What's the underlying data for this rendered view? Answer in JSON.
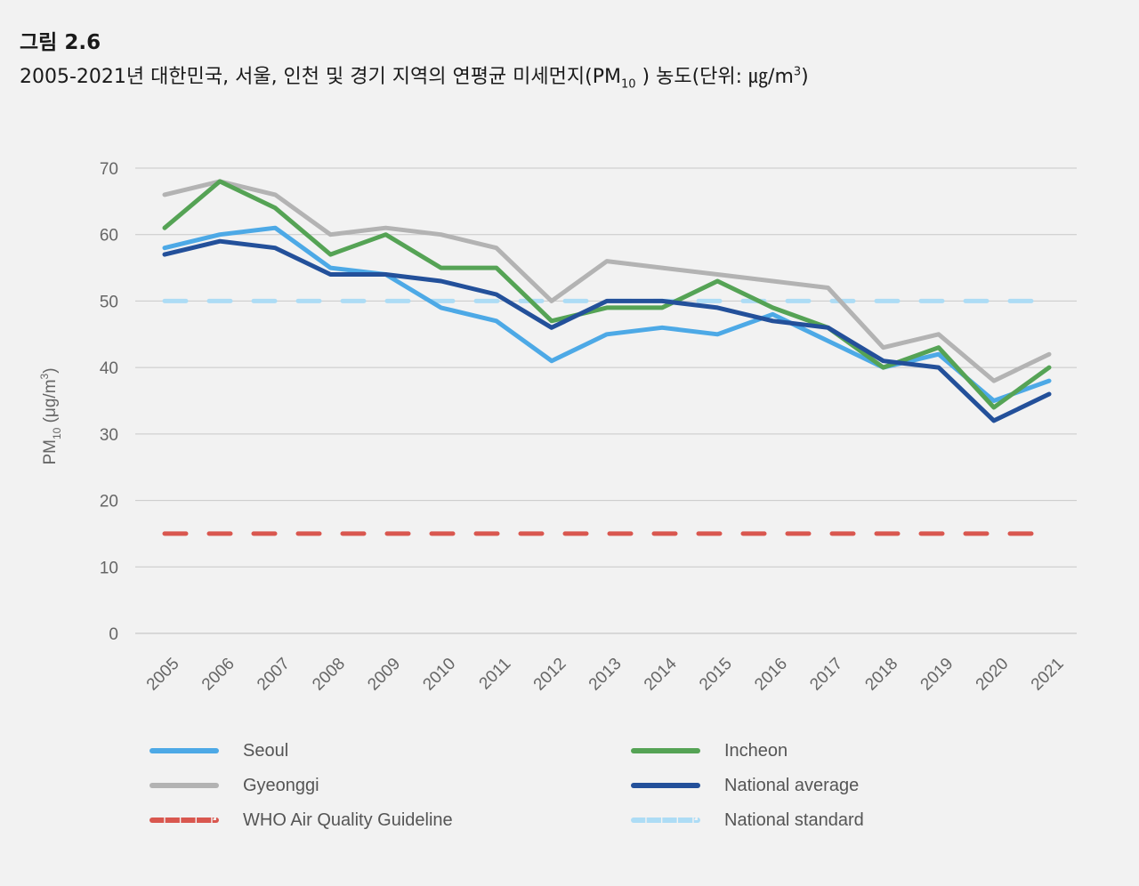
{
  "figure": {
    "label": "그림 2.6",
    "title_main": "2005-2021년 대한민국, 서울, 인천 및 경기 지역의 연평균 미세먼지(PM",
    "title_sub": "10",
    "title_tail": " ) 농도(단위: ㎍/m",
    "title_sup": "3",
    "title_end": ")"
  },
  "chart_data": {
    "type": "line",
    "categories": [
      "2005",
      "2006",
      "2007",
      "2008",
      "2009",
      "2010",
      "2011",
      "2012",
      "2013",
      "2014",
      "2015",
      "2016",
      "2017",
      "2018",
      "2019",
      "2020",
      "2021"
    ],
    "ylabel": "PM10 (μg/m3)",
    "ylim": [
      0,
      70
    ],
    "yticks": [
      0,
      10,
      20,
      30,
      40,
      50,
      60,
      70
    ],
    "grid": true,
    "legend_position": "bottom",
    "series": [
      {
        "name": "Seoul",
        "color": "#4da9e6",
        "dash": false,
        "values": [
          58,
          60,
          61,
          55,
          54,
          49,
          47,
          41,
          45,
          46,
          45,
          48,
          44,
          40,
          42,
          35,
          38
        ]
      },
      {
        "name": "Incheon",
        "color": "#55a355",
        "dash": false,
        "values": [
          61,
          68,
          64,
          57,
          60,
          55,
          55,
          47,
          49,
          49,
          53,
          49,
          46,
          40,
          43,
          34,
          40
        ]
      },
      {
        "name": "Gyeonggi",
        "color": "#b3b3b3",
        "dash": false,
        "values": [
          66,
          68,
          66,
          60,
          61,
          60,
          58,
          50,
          56,
          55,
          54,
          53,
          52,
          43,
          45,
          38,
          42
        ]
      },
      {
        "name": "National average",
        "color": "#23509a",
        "dash": false,
        "values": [
          57,
          59,
          58,
          54,
          54,
          53,
          51,
          46,
          50,
          50,
          49,
          47,
          46,
          41,
          40,
          32,
          36
        ]
      },
      {
        "name": "WHO Air Quality Guideline",
        "color": "#d9574f",
        "dash": true,
        "values": [
          15,
          15,
          15,
          15,
          15,
          15,
          15,
          15,
          15,
          15,
          15,
          15,
          15,
          15,
          15,
          15,
          15
        ]
      },
      {
        "name": "National standard",
        "color": "#addcf5",
        "dash": true,
        "values": [
          50,
          50,
          50,
          50,
          50,
          50,
          50,
          50,
          50,
          50,
          50,
          50,
          50,
          50,
          50,
          50,
          50
        ]
      }
    ],
    "legend_order": [
      "Seoul",
      "Incheon",
      "Gyeonggi",
      "National average",
      "WHO Air Quality Guideline",
      "National standard"
    ]
  }
}
